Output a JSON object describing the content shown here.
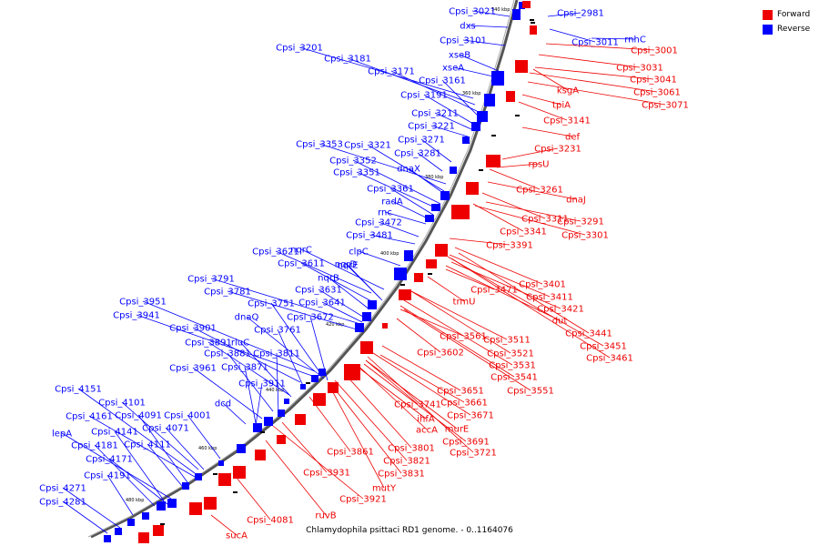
{
  "caption": "Chlamydophila psittaci RD1 genome. - 0..1164076",
  "legend": [
    {
      "label": "Forward",
      "color": "#ee0000"
    },
    {
      "label": "Reverse",
      "color": "#0000ff"
    }
  ],
  "colors": {
    "forward": "#ee0000",
    "reverse": "#0000ff",
    "backbone": "#888888"
  },
  "ticks": [
    "340 kbp",
    "360 kbp",
    "380 kbp",
    "400 kbp",
    "420 kbp",
    "440 kbp",
    "460 kbp",
    "480 kbp"
  ],
  "reverse_labels": [
    "Cpsi_3021",
    "dxs",
    "Cpsi_3101",
    "xseB",
    "xseA",
    "Cpsi_3201",
    "Cpsi_3181",
    "Cpsi_3171",
    "Cpsi_3161",
    "Cpsi_3191",
    "Cpsi_3211",
    "Cpsi_3221",
    "Cpsi_3271",
    "Cpsi_3353",
    "Cpsi_3321",
    "Cpsi_3281",
    "Cpsi_3352",
    "dnaX",
    "Cpsi_3351",
    "Cpsi_3361",
    "radA",
    "rnc",
    "Cpsi_3472",
    "Cpsi_3481",
    "Cpsi_3621",
    "nqrC",
    "clpC",
    "Cpsi_3611",
    "nqrD",
    "nqrE",
    "nqrB",
    "Cpsi_3791",
    "Cpsi_3781",
    "Cpsi_3631",
    "Cpsi_3641",
    "Cpsi_3951",
    "Cpsi_3751",
    "Cpsi_3941",
    "dnaQ",
    "Cpsi_3672",
    "Cpsi_3901",
    "Cpsi_3761",
    "Cpsi_3891",
    "rluC",
    "Cpsi_3881",
    "Cpsi_3811",
    "Cpsi_3961",
    "Cpsi_3871",
    "Cpsi_3911",
    "dcd",
    "Cpsi_4151",
    "Cpsi_4101",
    "Cpsi_4161",
    "Cpsi_4091",
    "Cpsi_4001",
    "Cpsi_4071",
    "lepA",
    "Cpsi_4141",
    "Cpsi_4181",
    "Cpsi_4111",
    "Cpsi_4171",
    "Cpsi_4191",
    "Cpsi_4271",
    "Cpsi_4281",
    "Cpsi_2981",
    "Cpsi_3011",
    "rnhC"
  ],
  "forward_labels": [
    "Cpsi_3001",
    "Cpsi_3031",
    "Cpsi_3041",
    "Cpsi_3061",
    "Cpsi_3071",
    "ksgA",
    "tpiA",
    "Cpsi_3141",
    "def",
    "Cpsi_3231",
    "rpsU",
    "Cpsi_3261",
    "dnaJ",
    "Cpsi_3311",
    "Cpsi_3291",
    "Cpsi_3341",
    "Cpsi_3301",
    "Cpsi_3391",
    "Cpsi_3401",
    "Cpsi_3471",
    "Cpsi_3411",
    "trmU",
    "Cpsi_3421",
    "dut",
    "Cpsi_3441",
    "Cpsi_3561",
    "Cpsi_3511",
    "Cpsi_3451",
    "Cpsi_3602",
    "Cpsi_3521",
    "Cpsi_3461",
    "Cpsi_3531",
    "Cpsi_3541",
    "Cpsi_3551",
    "Cpsi_3651",
    "Cpsi_3661",
    "Cpsi_3741",
    "ihfA",
    "Cpsi_3671",
    "accA",
    "murE",
    "Cpsi_3691",
    "Cpsi_3721",
    "Cpsi_3801",
    "Cpsi_3861",
    "Cpsi_3821",
    "Cpsi_3831",
    "Cpsi_3931",
    "mutY",
    "Cpsi_3921",
    "Cpsi_4081",
    "ruvB",
    "sucA"
  ]
}
